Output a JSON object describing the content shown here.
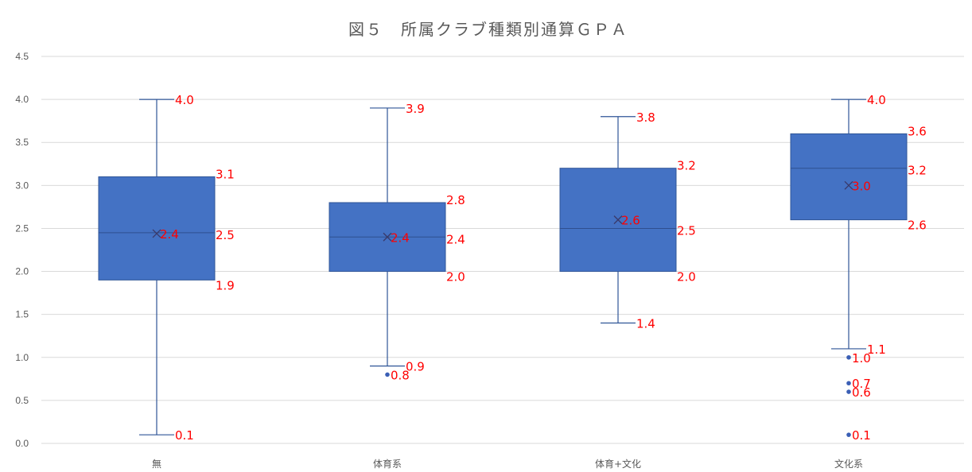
{
  "chart_data": {
    "type": "box",
    "title": "図５　所属クラブ種類別通算ＧＰＡ",
    "xlabel": "",
    "ylabel": "",
    "ylim": [
      0,
      4.5
    ],
    "yticks": [
      "0.0",
      "0.5",
      "1.0",
      "1.5",
      "2.0",
      "2.5",
      "3.0",
      "3.5",
      "4.0",
      "4.5"
    ],
    "grid": true,
    "colors": {
      "box_fill": "#4472c4",
      "box_stroke": "#2f5597",
      "label": "#ff0000",
      "grid": "#d9d9d9",
      "axis_text": "#595959"
    },
    "categories": [
      "無",
      "体育系",
      "体育+文化",
      "文化系"
    ],
    "boxes": [
      {
        "category": "無",
        "min": 0.1,
        "q1": 1.9,
        "median": 2.45,
        "q3": 3.1,
        "max": 4.0,
        "mean": 2.44,
        "outliers": [],
        "labels": {
          "max": "4.0",
          "q3": "3.1",
          "median": "2.5",
          "q1": "1.9",
          "min": "0.1",
          "mean": "2.4",
          "outliers": []
        }
      },
      {
        "category": "体育系",
        "min": 0.9,
        "q1": 2.0,
        "median": 2.4,
        "q3": 2.8,
        "max": 3.9,
        "mean": 2.4,
        "outliers": [
          0.8
        ],
        "labels": {
          "max": "3.9",
          "q3": "2.8",
          "median": "2.4",
          "q1": "2.0",
          "min": "0.9",
          "mean": "2.4",
          "outliers": [
            "0.8"
          ]
        }
      },
      {
        "category": "体育+文化",
        "min": 1.4,
        "q1": 2.0,
        "median": 2.5,
        "q3": 3.2,
        "max": 3.8,
        "mean": 2.6,
        "outliers": [],
        "labels": {
          "max": "3.8",
          "q3": "3.2",
          "median": "2.5",
          "q1": "2.0",
          "min": "1.4",
          "mean": "2.6",
          "outliers": []
        }
      },
      {
        "category": "文化系",
        "min": 1.1,
        "q1": 2.6,
        "median": 3.2,
        "q3": 3.6,
        "max": 4.0,
        "mean": 3.0,
        "outliers": [
          1.0,
          0.7,
          0.6,
          0.1
        ],
        "labels": {
          "max": "4.0",
          "q3": "3.6",
          "median": "3.2",
          "q1": "2.6",
          "min": "1.1",
          "mean": "3.0",
          "outliers": [
            "1.0",
            "0.7",
            "0.6",
            "0.1"
          ]
        }
      }
    ]
  }
}
